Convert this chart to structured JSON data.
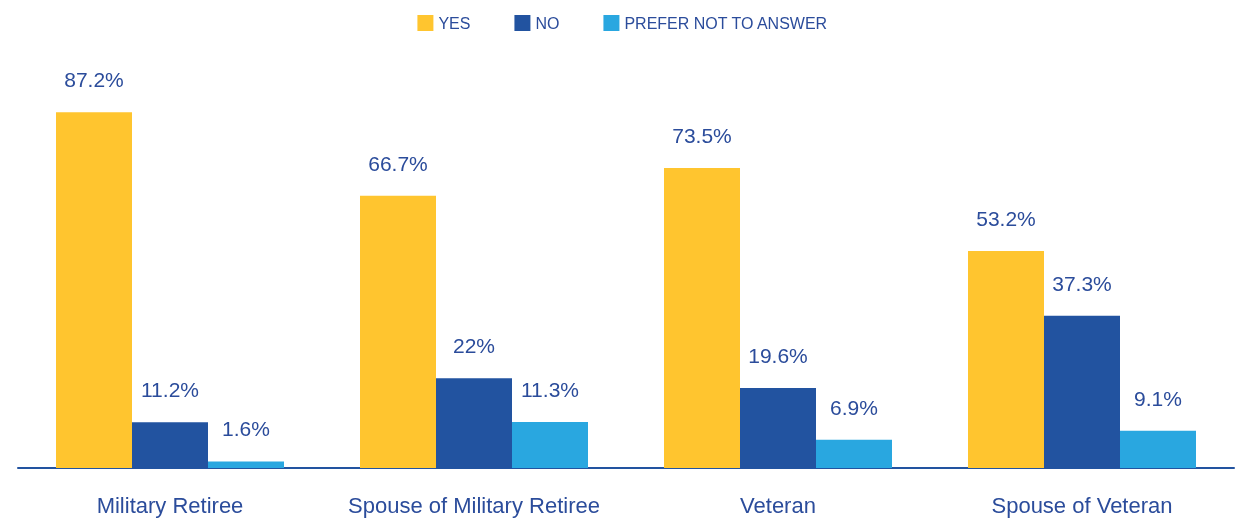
{
  "chart_data": {
    "type": "bar",
    "categories": [
      "Military Retiree",
      "Spouse of Military Retiree",
      "Veteran",
      "Spouse of Veteran"
    ],
    "series": [
      {
        "name": "YES",
        "color": "#ffc52f",
        "values": [
          87.2,
          66.7,
          73.5,
          53.2
        ],
        "value_labels": [
          "87.2%",
          "66.7%",
          "73.5%",
          "53.2%"
        ]
      },
      {
        "name": "NO",
        "color": "#2253a0",
        "values": [
          11.2,
          22,
          19.6,
          37.3
        ],
        "value_labels": [
          "11.2%",
          "22%",
          "19.6%",
          "37.3%"
        ]
      },
      {
        "name": "PREFER NOT TO ANSWER",
        "color": "#29a7e0",
        "values": [
          1.6,
          11.3,
          6.9,
          9.1
        ],
        "value_labels": [
          "1.6%",
          "11.3%",
          "6.9%",
          "9.1%"
        ]
      }
    ],
    "legend": "top"
  }
}
